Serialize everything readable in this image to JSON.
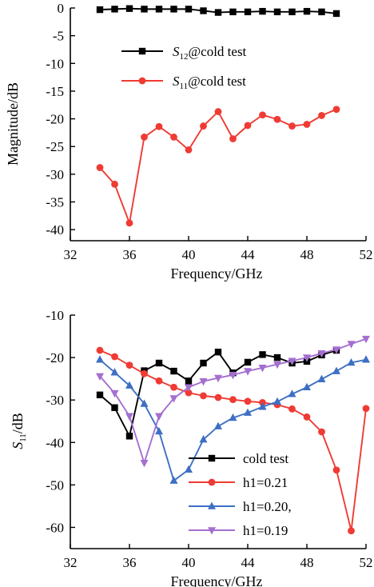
{
  "chart_data": [
    {
      "type": "line",
      "xlabel": "Frequency/GHz",
      "ylabel": "Magnitude/dB",
      "xlim": [
        32,
        52
      ],
      "ylim": [
        -42,
        0
      ],
      "xticks": [
        32,
        36,
        40,
        44,
        48,
        52
      ],
      "yticks": [
        0,
        -5,
        -10,
        -15,
        -20,
        -25,
        -30,
        -35,
        -40
      ],
      "grid": false,
      "legend_position": "top-center",
      "series": [
        {
          "name": "S12@cold test",
          "label_main": "S",
          "label_sub": "12",
          "label_rest": "@cold test",
          "color": "#000000",
          "marker": "square",
          "x": [
            34,
            35,
            36,
            37,
            38,
            39,
            40,
            41,
            42,
            43,
            44,
            45,
            46,
            47,
            48,
            49,
            50
          ],
          "y": [
            -0.3,
            -0.2,
            -0.1,
            -0.2,
            -0.2,
            -0.2,
            -0.2,
            -0.5,
            -0.8,
            -0.7,
            -0.7,
            -0.6,
            -0.7,
            -0.7,
            -0.6,
            -0.7,
            -1.0
          ]
        },
        {
          "name": "S11@cold test",
          "label_main": "S",
          "label_sub": "11",
          "label_rest": "@cold test",
          "color": "#ef3b33",
          "marker": "circle",
          "x": [
            34,
            35,
            36,
            37,
            38,
            39,
            40,
            41,
            42,
            43,
            44,
            45,
            46,
            47,
            48,
            49,
            50
          ],
          "y": [
            -28.8,
            -31.8,
            -38.8,
            -23.3,
            -21.4,
            -23.3,
            -25.6,
            -21.3,
            -18.7,
            -23.6,
            -21.2,
            -19.3,
            -20.1,
            -21.3,
            -21.0,
            -19.4,
            -18.3
          ]
        }
      ]
    },
    {
      "type": "line",
      "xlabel": "Frequency/GHz",
      "ylabel_main": "S",
      "ylabel_sub": "11",
      "ylabel_rest": "/dB",
      "xlim": [
        32,
        52
      ],
      "ylim": [
        -65,
        -10
      ],
      "xticks": [
        32,
        36,
        40,
        44,
        48,
        52
      ],
      "yticks": [
        -10,
        -20,
        -30,
        -40,
        -50,
        -60
      ],
      "grid": false,
      "legend_position": "bottom-right",
      "series": [
        {
          "name": "cold test",
          "color": "#000000",
          "marker": "square",
          "x": [
            34,
            35,
            36,
            37,
            38,
            39,
            40,
            41,
            42,
            43,
            44,
            45,
            46,
            47,
            48,
            49,
            50
          ],
          "y": [
            -28.8,
            -31.8,
            -38.5,
            -23.1,
            -21.3,
            -23.2,
            -25.5,
            -21.3,
            -18.7,
            -23.6,
            -21.1,
            -19.3,
            -20.0,
            -21.3,
            -20.9,
            -19.4,
            -18.3
          ]
        },
        {
          "name": "h1=0.21",
          "color": "#ef3b33",
          "marker": "circle",
          "x": [
            34,
            35,
            36,
            37,
            38,
            39,
            40,
            41,
            42,
            43,
            44,
            45,
            46,
            47,
            48,
            49,
            50,
            51,
            52
          ],
          "y": [
            -18.3,
            -19.8,
            -21.8,
            -23.8,
            -25.5,
            -27.0,
            -28.3,
            -29.0,
            -29.4,
            -29.9,
            -30.3,
            -30.6,
            -31.1,
            -32.1,
            -34.0,
            -37.5,
            -46.5,
            -60.8,
            -32.0
          ]
        },
        {
          "name": "h1=0.20,",
          "color": "#3d6fc4",
          "marker": "triangle-up",
          "x": [
            34,
            35,
            36,
            37,
            38,
            39,
            40,
            41,
            42,
            43,
            44,
            45,
            46,
            47,
            48,
            49,
            50,
            51,
            52
          ],
          "y": [
            -20.5,
            -23.5,
            -26.6,
            -30.9,
            -37.4,
            -49.0,
            -46.4,
            -39.3,
            -36.2,
            -34.2,
            -33.0,
            -31.6,
            -30.4,
            -28.6,
            -27.0,
            -25.1,
            -23.2,
            -21.2,
            -20.5
          ]
        },
        {
          "name": "h1=0.19",
          "color": "#a46fd0",
          "marker": "triangle-down",
          "x": [
            34,
            35,
            36,
            37,
            38,
            39,
            40,
            41,
            42,
            43,
            44,
            45,
            46,
            47,
            48,
            49,
            50,
            51,
            52
          ],
          "y": [
            -24.4,
            -28.4,
            -33.8,
            -44.8,
            -33.8,
            -29.6,
            -27.0,
            -25.6,
            -24.8,
            -24.1,
            -23.2,
            -22.4,
            -21.6,
            -20.8,
            -20.0,
            -19.0,
            -18.1,
            -16.8,
            -15.6
          ]
        }
      ]
    }
  ]
}
